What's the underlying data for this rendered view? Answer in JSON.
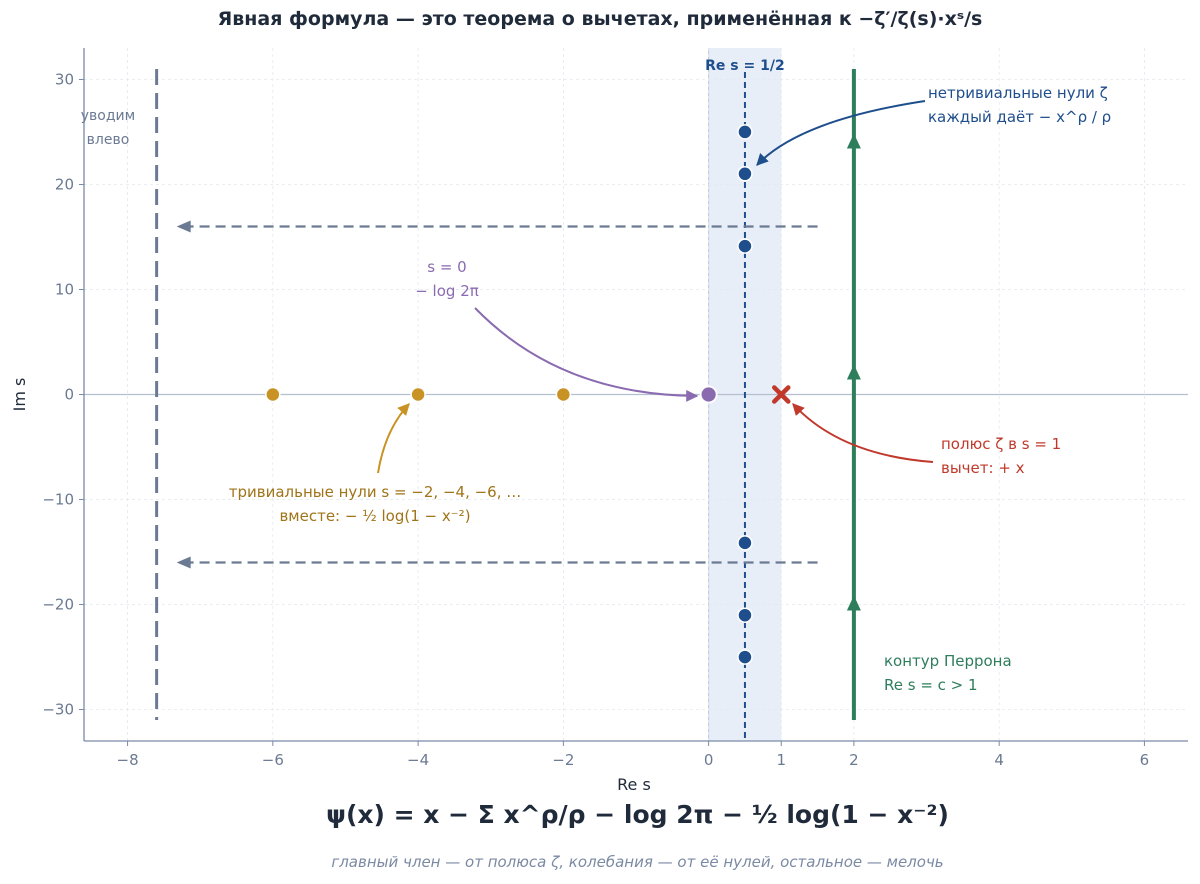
{
  "title": "Явная формула — это теорема о вычетах, применённая к  −ζ′/ζ(s)·xˢ/s",
  "formula": "ψ(x)  =  x  −  Σ x^ρ/ρ  −  log 2π  −  ½ log(1 − x⁻²)",
  "caption": "главный член — от полюса ζ,  колебания — от её нулей,  остальное — мелочь",
  "colors": {
    "axis": "#7a8aa6",
    "tick_text": "#6b7a93",
    "critical_strip": "#e8eef8",
    "critical_line": "#1f4e8c",
    "nontrivial_zero": "#1f4e8c",
    "trivial_zero": "#c99224",
    "s0_point": "#8a6bb0",
    "pole": "#c0392b",
    "contour": "#2e7d5b",
    "shift_arrows": "#6b7a93"
  },
  "chart_data": {
    "type": "scatter",
    "xlabel": "Re s",
    "ylabel": "Im s",
    "xlim": [
      -8.6,
      6.6
    ],
    "ylim": [
      -33,
      33
    ],
    "xticks": [
      {
        "value": -8,
        "label": "−8"
      },
      {
        "value": -6,
        "label": "−6"
      },
      {
        "value": -4,
        "label": "−4"
      },
      {
        "value": -2,
        "label": "−2"
      },
      {
        "value": 0,
        "label": "0"
      },
      {
        "value": 1,
        "label": "1"
      },
      {
        "value": 2,
        "label": "2"
      },
      {
        "value": 4,
        "label": "4"
      },
      {
        "value": 6,
        "label": "6"
      }
    ],
    "yticks": [
      {
        "value": 30,
        "label": "30"
      },
      {
        "value": 20,
        "label": "20"
      },
      {
        "value": 10,
        "label": "10"
      },
      {
        "value": 0,
        "label": "0"
      },
      {
        "value": -10,
        "label": "−10"
      },
      {
        "value": -20,
        "label": "−20"
      },
      {
        "value": -30,
        "label": "−30"
      }
    ],
    "grid": true,
    "critical_strip": {
      "x0": 0,
      "x1": 1
    },
    "critical_line": {
      "x": 0.5,
      "label": "Re s = 1/2"
    },
    "nontrivial_zeros": {
      "x": [
        0.5,
        0.5,
        0.5,
        0.5,
        0.5,
        0.5
      ],
      "y": [
        14.13,
        21.02,
        25.01,
        -14.13,
        -21.02,
        -25.01
      ]
    },
    "trivial_zeros": {
      "x": [
        -2,
        -4,
        -6
      ],
      "y": [
        0,
        0,
        0
      ]
    },
    "s0_point": {
      "x": 0,
      "y": 0
    },
    "pole": {
      "x": 1,
      "y": 0
    },
    "contour": {
      "x": 2,
      "y_range": [
        -31,
        31
      ],
      "arrow_y": [
        -20,
        2,
        24
      ]
    },
    "shift_left_line": {
      "x": -7.6,
      "y_range": [
        -31,
        31
      ]
    },
    "shift_arrows": [
      {
        "y": 16,
        "from_x": 1.5,
        "to_x": -7.2
      },
      {
        "y": -16,
        "from_x": 1.5,
        "to_x": -7.2
      }
    ],
    "annotations": {
      "shift_left": {
        "lines": [
          "уводим",
          "влево"
        ]
      },
      "nontrivial": {
        "lines": [
          "нетривиальные нули ζ",
          "каждый даёт  − x^ρ / ρ"
        ]
      },
      "s0": {
        "lines": [
          "s = 0",
          "− log 2π"
        ]
      },
      "pole": {
        "lines": [
          "полюс ζ в s = 1",
          "вычет:  + x"
        ]
      },
      "trivial": {
        "lines": [
          "тривиальные нули  s = −2, −4, −6, …",
          "вместе:  − ½ log(1 − x⁻²)"
        ]
      },
      "contour": {
        "lines": [
          "контур Перрона",
          "Re s = c > 1"
        ]
      }
    }
  }
}
